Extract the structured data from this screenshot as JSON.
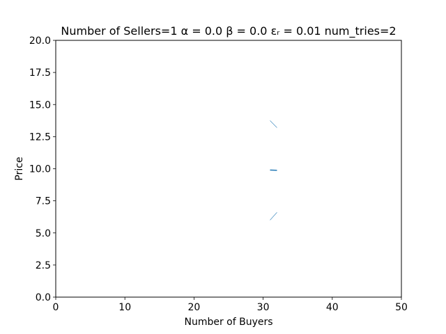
{
  "chart_data": {
    "type": "line",
    "title": "Number of Sellers=1  α = 0.0  β = 0.0  εᵣ = 0.01 num_tries=2",
    "xlabel": "Number of Buyers",
    "ylabel": "Price",
    "xlim": [
      0,
      50
    ],
    "ylim": [
      0,
      20
    ],
    "xticks": [
      0,
      10,
      20,
      30,
      40,
      50
    ],
    "xtick_labels": [
      "0",
      "10",
      "20",
      "30",
      "40",
      "50"
    ],
    "yticks": [
      0,
      2.5,
      5,
      7.5,
      10,
      12.5,
      15,
      17.5,
      20
    ],
    "ytick_labels": [
      "0.0",
      "2.5",
      "5.0",
      "7.5",
      "10.0",
      "12.5",
      "15.0",
      "17.5",
      "20.0"
    ],
    "grid": false,
    "series": [
      {
        "color": "#1f77b4",
        "x": [
          31,
          32
        ],
        "y": [
          9.9,
          9.88
        ]
      }
    ],
    "bands": [
      {
        "color": "#1f77b4",
        "x": [
          31,
          32
        ],
        "lower": [
          6.0,
          6.6
        ],
        "upper": [
          13.75,
          13.2
        ]
      }
    ]
  }
}
